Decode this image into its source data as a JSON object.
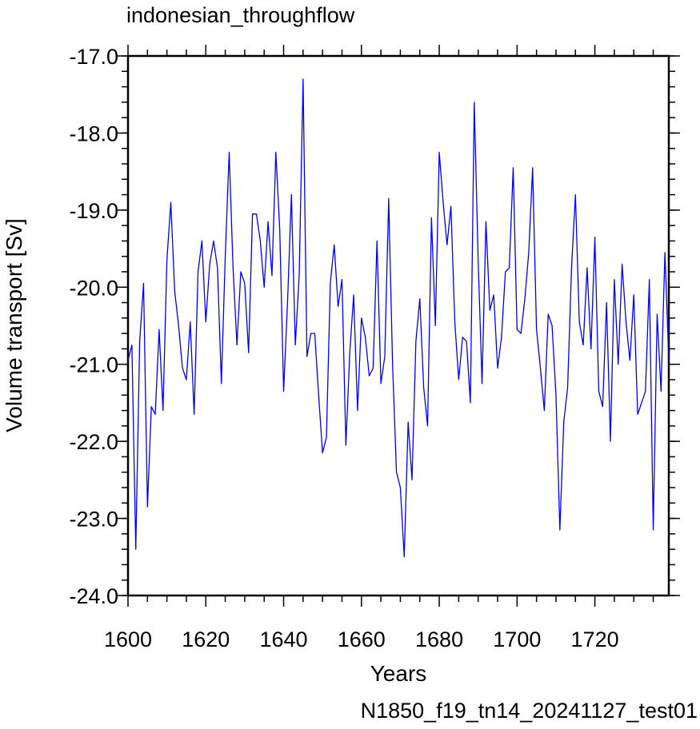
{
  "chart_data": {
    "type": "line",
    "title": "indonesian_throughflow",
    "xlabel": "Years",
    "ylabel": "Volume transport [Sv]",
    "caption": "N1850_f19_tn14_20241127_test01",
    "xlim": [
      1600,
      1739
    ],
    "ylim": [
      -24.0,
      -17.0
    ],
    "x_ticks": [
      1600,
      1620,
      1640,
      1660,
      1680,
      1700,
      1720
    ],
    "y_ticks": [
      "-17.0",
      "-18.0",
      "-19.0",
      "-20.0",
      "-21.0",
      "-22.0",
      "-23.0",
      "-24.0"
    ],
    "grid": false,
    "line_color": "#0000ff",
    "caption_color": "#0000ff",
    "x": [
      1600,
      1601,
      1602,
      1603,
      1604,
      1605,
      1606,
      1607,
      1608,
      1609,
      1610,
      1611,
      1612,
      1613,
      1614,
      1615,
      1616,
      1617,
      1618,
      1619,
      1620,
      1621,
      1622,
      1623,
      1624,
      1625,
      1626,
      1627,
      1628,
      1629,
      1630,
      1631,
      1632,
      1633,
      1634,
      1635,
      1636,
      1637,
      1638,
      1639,
      1640,
      1641,
      1642,
      1643,
      1644,
      1645,
      1646,
      1647,
      1648,
      1649,
      1650,
      1651,
      1652,
      1653,
      1654,
      1655,
      1656,
      1657,
      1658,
      1659,
      1660,
      1661,
      1662,
      1663,
      1664,
      1665,
      1666,
      1667,
      1668,
      1669,
      1670,
      1671,
      1672,
      1673,
      1674,
      1675,
      1676,
      1677,
      1678,
      1679,
      1680,
      1681,
      1682,
      1683,
      1684,
      1685,
      1686,
      1687,
      1688,
      1689,
      1690,
      1691,
      1692,
      1693,
      1694,
      1695,
      1696,
      1697,
      1698,
      1699,
      1700,
      1701,
      1702,
      1703,
      1704,
      1705,
      1706,
      1707,
      1708,
      1709,
      1710,
      1711,
      1712,
      1713,
      1714,
      1715,
      1716,
      1717,
      1718,
      1719,
      1720,
      1721,
      1722,
      1723,
      1724,
      1725,
      1726,
      1727,
      1728,
      1729,
      1730,
      1731,
      1732,
      1733,
      1734,
      1735,
      1736,
      1737,
      1738,
      1739
    ],
    "values": [
      -20.95,
      -20.75,
      -23.4,
      -20.7,
      -19.95,
      -22.85,
      -21.55,
      -21.65,
      -20.55,
      -21.6,
      -19.65,
      -18.9,
      -20.05,
      -20.5,
      -21.05,
      -21.2,
      -20.45,
      -21.65,
      -19.8,
      -19.4,
      -20.45,
      -19.7,
      -19.4,
      -19.75,
      -21.25,
      -19.6,
      -18.25,
      -19.75,
      -20.75,
      -19.8,
      -19.95,
      -20.85,
      -19.05,
      -19.05,
      -19.4,
      -20.0,
      -19.15,
      -19.85,
      -18.25,
      -19.25,
      -21.35,
      -20.2,
      -18.8,
      -20.75,
      -19.85,
      -17.3,
      -20.9,
      -20.6,
      -20.6,
      -21.4,
      -22.15,
      -21.95,
      -19.95,
      -19.45,
      -20.25,
      -19.9,
      -22.05,
      -20.85,
      -20.1,
      -21.6,
      -20.4,
      -20.65,
      -21.15,
      -21.05,
      -19.4,
      -21.25,
      -20.9,
      -18.85,
      -21.0,
      -22.4,
      -22.6,
      -23.5,
      -21.75,
      -22.5,
      -20.7,
      -20.15,
      -21.3,
      -21.8,
      -19.1,
      -20.5,
      -18.25,
      -18.9,
      -19.45,
      -18.95,
      -20.45,
      -21.2,
      -20.65,
      -20.7,
      -21.5,
      -17.6,
      -19.65,
      -21.25,
      -19.15,
      -20.3,
      -20.1,
      -21.05,
      -20.65,
      -19.8,
      -19.75,
      -18.45,
      -20.55,
      -20.6,
      -20.15,
      -19.55,
      -18.45,
      -20.55,
      -21.05,
      -21.6,
      -20.35,
      -20.5,
      -21.4,
      -23.15,
      -21.75,
      -21.3,
      -19.75,
      -18.8,
      -20.45,
      -20.75,
      -19.75,
      -20.8,
      -19.35,
      -21.35,
      -21.55,
      -20.2,
      -22.0,
      -19.9,
      -21.0,
      -19.7,
      -20.45,
      -20.95,
      -20.1,
      -21.65,
      -21.5,
      -21.35,
      -19.9,
      -23.15,
      -20.35,
      -21.35,
      -19.55,
      -20.95
    ]
  }
}
